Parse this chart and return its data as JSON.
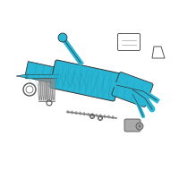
{
  "bg_color": "#ffffff",
  "rack_color": "#29b5d4",
  "rack_dark": "#1a8aa8",
  "gray": "#888888",
  "gray_light": "#aaaaaa",
  "gray_dark": "#555555",
  "outline": "#333333"
}
